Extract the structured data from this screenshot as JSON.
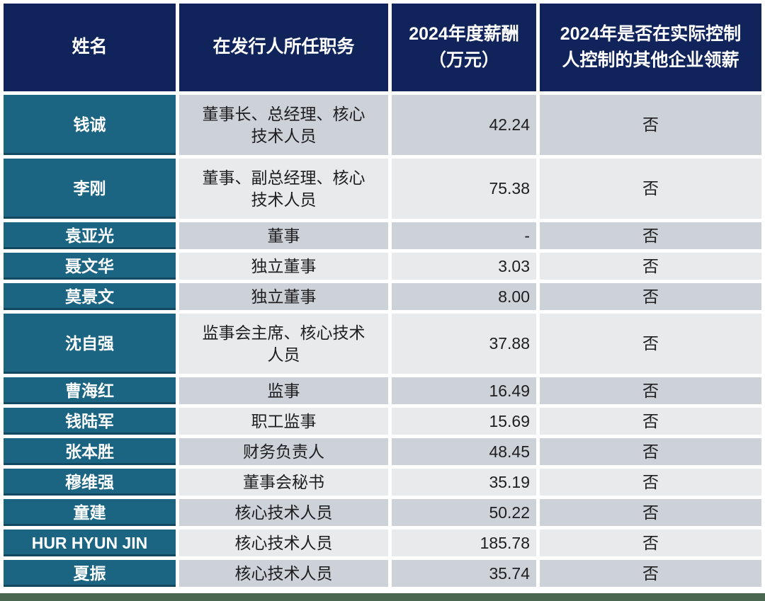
{
  "chart_data": {
    "type": "table",
    "columns": [
      "姓名",
      "在发行人所任职务",
      "2024年度薪酬\n（万元）",
      "2024年是否在实际控制\n人控制的其他企业领薪"
    ],
    "rows": [
      {
        "name": "钱诚",
        "position": "董事长、总经理、核心技术人员",
        "salary": "42.24",
        "other_pay": "否"
      },
      {
        "name": "李刚",
        "position": "董事、副总经理、核心技术人员",
        "salary": "75.38",
        "other_pay": "否"
      },
      {
        "name": "袁亚光",
        "position": "董事",
        "salary": "-",
        "other_pay": "否"
      },
      {
        "name": "聂文华",
        "position": "独立董事",
        "salary": "3.03",
        "other_pay": "否"
      },
      {
        "name": "莫景文",
        "position": "独立董事",
        "salary": "8.00",
        "other_pay": "否"
      },
      {
        "name": "沈自强",
        "position": "监事会主席、核心技术人员",
        "salary": "37.88",
        "other_pay": "否"
      },
      {
        "name": "曹海红",
        "position": "监事",
        "salary": "16.49",
        "other_pay": "否"
      },
      {
        "name": "钱陆军",
        "position": "职工监事",
        "salary": "15.69",
        "other_pay": "否"
      },
      {
        "name": "张本胜",
        "position": "财务负责人",
        "salary": "48.45",
        "other_pay": "否"
      },
      {
        "name": "穆维强",
        "position": "董事会秘书",
        "salary": "35.19",
        "other_pay": "否"
      },
      {
        "name": "童建",
        "position": "核心技术人员",
        "salary": "50.22",
        "other_pay": "否"
      },
      {
        "name": "HUR HYUN JIN",
        "position": "核心技术人员",
        "salary": "185.78",
        "other_pay": "否"
      },
      {
        "name": "夏振",
        "position": "核心技术人员",
        "salary": "35.74",
        "other_pay": "否"
      }
    ]
  },
  "colors": {
    "header_bg": "#10235a",
    "name_cell_bg": "#1b6583",
    "row_band_dark": "#cdd1d8",
    "row_band_light": "#e8eaec",
    "footer_bar": "#486852",
    "header_text": "#ffffff",
    "body_text": "#1e1e20"
  }
}
